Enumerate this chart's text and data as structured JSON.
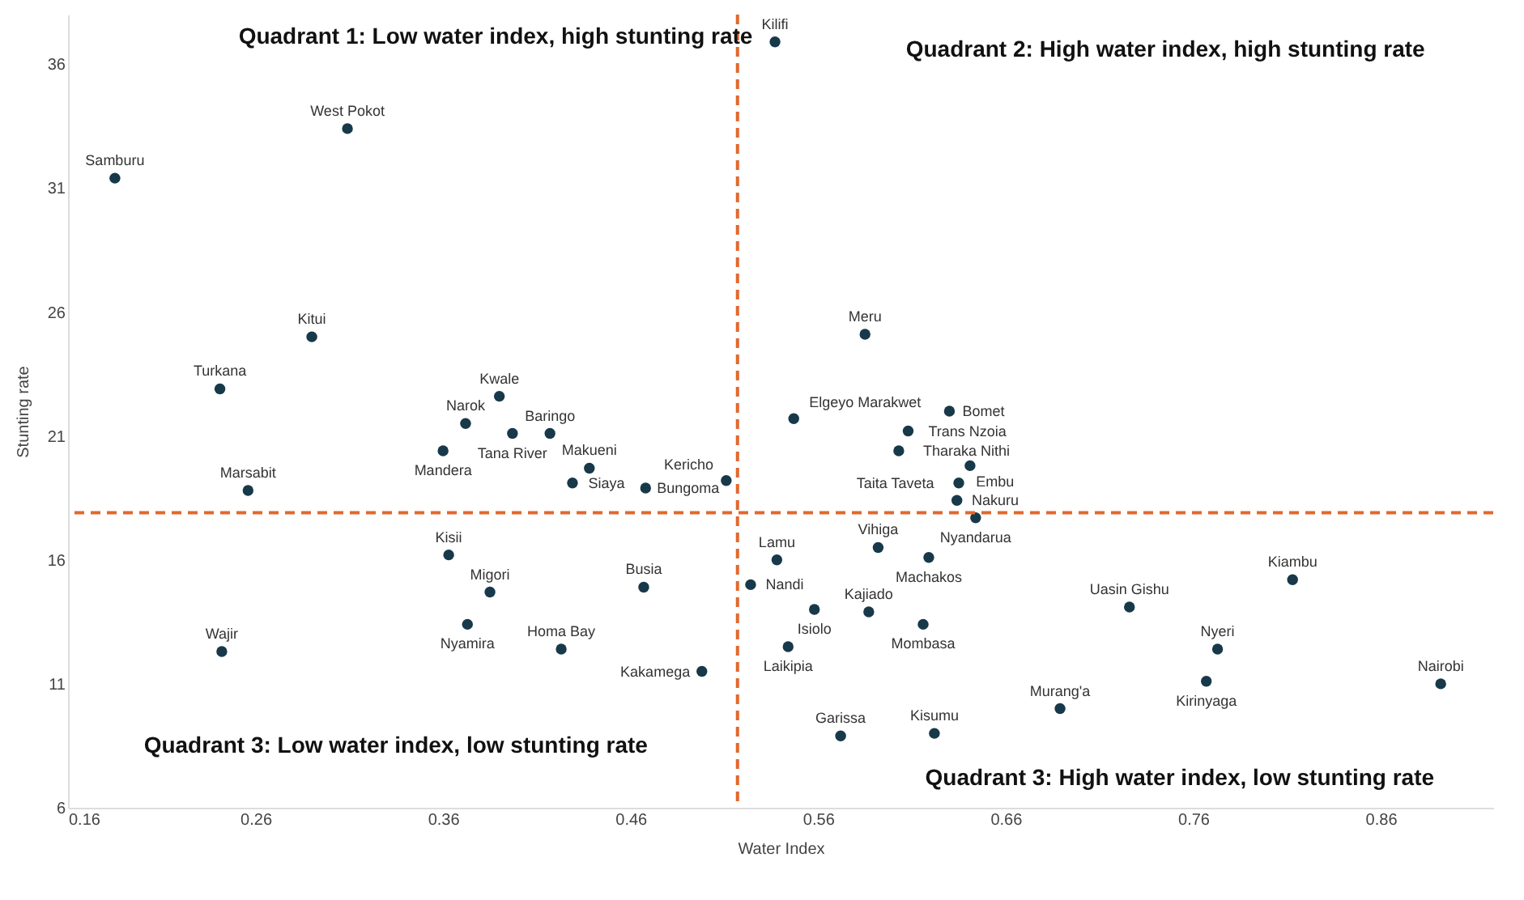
{
  "chart_data": {
    "type": "scatter",
    "xlabel": "Water Index",
    "ylabel": "Stunting rate",
    "annotations": [
      "Quadrant 1: Low water index, high stunting rate",
      "Quadrant 2: High water index, high stunting rate",
      "Quadrant 3: Low water index, low stunting rate",
      "Quadrant 3: High water index, low stunting rate"
    ],
    "x": [
      0.185,
      0.309,
      0.29,
      0.241,
      0.39,
      0.372,
      0.417,
      0.397,
      0.36,
      0.438,
      0.429,
      0.468,
      0.511,
      0.256,
      0.537,
      0.585,
      0.547,
      0.608,
      0.63,
      0.603,
      0.641,
      0.635,
      0.634,
      0.644,
      0.538,
      0.524,
      0.592,
      0.619,
      0.558,
      0.587,
      0.616,
      0.544,
      0.572,
      0.622,
      0.689,
      0.726,
      0.773,
      0.767,
      0.813,
      0.892,
      0.363,
      0.385,
      0.373,
      0.467,
      0.423,
      0.498,
      0.242
    ],
    "values": [
      31.4,
      33.4,
      25.0,
      22.9,
      22.6,
      21.5,
      21.1,
      21.1,
      20.4,
      19.7,
      19.1,
      18.9,
      19.2,
      18.8,
      36.9,
      25.1,
      21.7,
      21.2,
      22.0,
      20.4,
      19.8,
      19.1,
      18.4,
      17.7,
      16.0,
      15.0,
      16.5,
      16.1,
      14.0,
      13.9,
      13.4,
      12.5,
      8.9,
      9.0,
      10.0,
      14.1,
      12.4,
      11.1,
      15.2,
      11.0,
      16.2,
      14.7,
      13.4,
      14.9,
      12.4,
      11.5,
      12.3
    ],
    "value_labels": [
      "Samburu",
      "West Pokot",
      "Kitui",
      "Turkana",
      "Kwale",
      "Narok",
      "Baringo",
      "Tana River",
      "Mandera",
      "Makueni",
      "Siaya",
      "Bungoma",
      "Kericho",
      "Marsabit",
      "Kilifi",
      "Meru",
      "Elgeyo Marakwet",
      "Trans Nzoia",
      "Bomet",
      "Tharaka Nithi",
      "Embu",
      "Taita Taveta",
      "Nakuru",
      "Nyandarua",
      "Lamu",
      "Nandi",
      "Vihiga",
      "Machakos",
      "Isiolo",
      "Kajiado",
      "Mombasa",
      "Laikipia",
      "Garissa",
      "Kisumu",
      "Murang'a",
      "Uasin Gishu",
      "Nyeri",
      "Kirinyaga",
      "Kiambu",
      "Nairobi",
      "Kisii",
      "Migori",
      "Nyamira",
      "Busia",
      "Homa Bay",
      "Kakamega",
      "Wajir"
    ],
    "color": "#17394a",
    "marker": "circle",
    "xlim": [
      0.16,
      0.92
    ],
    "xticks": [
      0.16,
      0.26,
      0.36,
      0.46,
      0.56,
      0.66,
      0.76,
      0.86
    ],
    "ylim": [
      6,
      38
    ],
    "yticks": [
      6,
      11,
      16,
      21,
      26,
      31,
      36
    ],
    "ref_lines": [
      {
        "axis": "x",
        "value": 0.517,
        "color": "#e2682c",
        "line_style": "dashed"
      },
      {
        "axis": "y",
        "value": 17.9,
        "color": "#e2682c",
        "line_style": "dashed"
      }
    ],
    "grid": false
  }
}
